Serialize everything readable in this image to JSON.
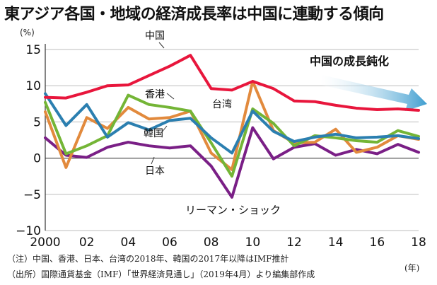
{
  "title": "東アジア各国・地域の経済成長率は中国に連動する傾向",
  "notes": [
    "（注）中国、香港、日本、台湾の2018年、韓国の2017年以降はIMF推計",
    "（出所）国際通貨基金（IMF）「世界経済見通し」（2019年4月）より編集部作成"
  ],
  "chart_data": {
    "type": "line",
    "y_unit_label": "(%)",
    "x_unit_label": "(年)",
    "x": [
      2000,
      2001,
      2002,
      2003,
      2004,
      2005,
      2006,
      2007,
      2008,
      2009,
      2010,
      2011,
      2012,
      2013,
      2014,
      2015,
      2016,
      2017,
      2018
    ],
    "x_tick_values": [
      2000,
      2002,
      2004,
      2006,
      2008,
      2010,
      2012,
      2014,
      2016,
      2018
    ],
    "x_tick_labels": [
      "2000",
      "02",
      "04",
      "06",
      "08",
      "10",
      "12",
      "14",
      "16",
      "18"
    ],
    "ylim": [
      -10,
      15
    ],
    "y_ticks": [
      15,
      10,
      5,
      0,
      -5,
      -10
    ],
    "y_tick_labels": [
      "15",
      "10",
      "5",
      "0",
      "−5",
      "−10"
    ],
    "grid": "horizontal",
    "series": [
      {
        "name": "中国",
        "color": "#e8163c",
        "values": [
          8.4,
          8.3,
          9.1,
          10.0,
          10.1,
          11.4,
          12.7,
          14.2,
          9.6,
          9.4,
          10.6,
          9.6,
          7.9,
          7.8,
          7.3,
          6.9,
          6.7,
          6.8,
          6.6
        ]
      },
      {
        "name": "韓国",
        "color": "#2b7fb0",
        "values": [
          8.9,
          4.5,
          7.4,
          2.9,
          4.9,
          3.9,
          5.2,
          5.5,
          2.8,
          0.7,
          6.5,
          3.7,
          2.3,
          2.9,
          3.3,
          2.8,
          2.9,
          3.1,
          2.7
        ]
      },
      {
        "name": "香港",
        "color": "#74b536",
        "values": [
          7.7,
          0.6,
          1.7,
          3.1,
          8.7,
          7.4,
          7.0,
          6.5,
          2.1,
          -2.5,
          6.8,
          4.8,
          1.7,
          3.1,
          2.8,
          2.4,
          2.2,
          3.8,
          3.0
        ]
      },
      {
        "name": "台湾",
        "color": "#e28a3d",
        "values": [
          6.4,
          -1.3,
          5.6,
          4.1,
          7.0,
          5.4,
          5.6,
          6.5,
          0.7,
          -1.6,
          10.6,
          3.8,
          2.1,
          2.2,
          4.0,
          0.8,
          1.5,
          3.1,
          2.6
        ]
      },
      {
        "name": "日本",
        "color": "#7a1f86",
        "values": [
          2.8,
          0.4,
          0.1,
          1.5,
          2.2,
          1.7,
          1.4,
          1.7,
          -1.1,
          -5.4,
          4.2,
          -0.1,
          1.5,
          2.0,
          0.4,
          1.2,
          0.6,
          1.9,
          0.8
        ]
      }
    ],
    "annotations": {
      "lehman": "リーマン・ショック",
      "trend": "中国の成長鈍化"
    }
  }
}
